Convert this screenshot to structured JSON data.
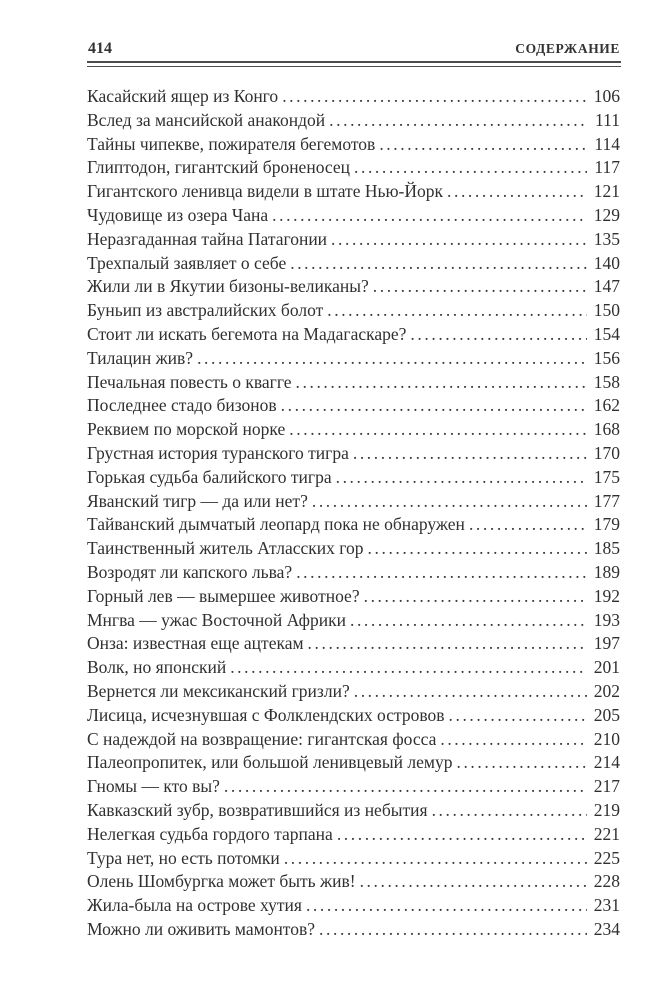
{
  "header": {
    "page_number": "414",
    "title": "СОДЕРЖАНИЕ"
  },
  "toc": {
    "entries": [
      {
        "title": "Касайский ящер из Конго",
        "page": "106"
      },
      {
        "title": "Вслед за мансийской анакондой",
        "page": "111"
      },
      {
        "title": "Тайны чипекве, пожирателя бегемотов",
        "page": "114"
      },
      {
        "title": "Глиптодон, гигантский броненосец",
        "page": "117"
      },
      {
        "title": "Гигантского ленивца видели в штате Нью-Йорк",
        "page": "121"
      },
      {
        "title": "Чудовище из озера Чана",
        "page": "129"
      },
      {
        "title": "Неразгаданная тайна Патагонии",
        "page": "135"
      },
      {
        "title": "Трехпалый заявляет о себе",
        "page": "140"
      },
      {
        "title": "Жили ли в Якутии бизоны-великаны?",
        "page": "147"
      },
      {
        "title": "Буньип из австралийских болот",
        "page": "150"
      },
      {
        "title": "Стоит ли искать бегемота на Мадагаскаре?",
        "page": "154"
      },
      {
        "title": "Тилацин жив?",
        "page": "156"
      },
      {
        "title": "Печальная повесть о квагге",
        "page": "158"
      },
      {
        "title": "Последнее стадо бизонов",
        "page": "162"
      },
      {
        "title": "Реквием по морской норке",
        "page": "168"
      },
      {
        "title": "Грустная история туранского тигра",
        "page": "170"
      },
      {
        "title": "Горькая судьба балийского тигра",
        "page": "175"
      },
      {
        "title": "Яванский тигр — да или нет?",
        "page": "177"
      },
      {
        "title": "Тайванский дымчатый леопард пока не обнаружен",
        "page": "179"
      },
      {
        "title": "Таинственный житель Атласских гор",
        "page": "185"
      },
      {
        "title": "Возродят ли капского льва?",
        "page": "189"
      },
      {
        "title": "Горный лев — вымершее животное?",
        "page": "192"
      },
      {
        "title": "Мнгва — ужас Восточной Африки",
        "page": "193"
      },
      {
        "title": "Онза: известная еще ацтекам",
        "page": "197"
      },
      {
        "title": "Волк, но японский",
        "page": "201"
      },
      {
        "title": "Вернется ли мексиканский гризли?",
        "page": "202"
      },
      {
        "title": "Лисица, исчезнувшая с Фолклендских островов",
        "page": "205"
      },
      {
        "title": "С надеждой на возвращение: гигантская фосса",
        "page": "210"
      },
      {
        "title": "Палеопропитек, или большой ленивцевый лемур",
        "page": "214"
      },
      {
        "title": "Гномы — кто вы?",
        "page": "217"
      },
      {
        "title": "Кавказский зубр, возвратившийся из небытия",
        "page": "219"
      },
      {
        "title": "Нелегкая судьба гордого тарпана",
        "page": "221"
      },
      {
        "title": "Тура нет, но есть потомки",
        "page": "225"
      },
      {
        "title": "Олень Шомбургка может быть жив!",
        "page": "228"
      },
      {
        "title": "Жила-была на острове хутия",
        "page": "231"
      },
      {
        "title": "Можно ли оживить мамонтов?",
        "page": "234"
      }
    ]
  }
}
